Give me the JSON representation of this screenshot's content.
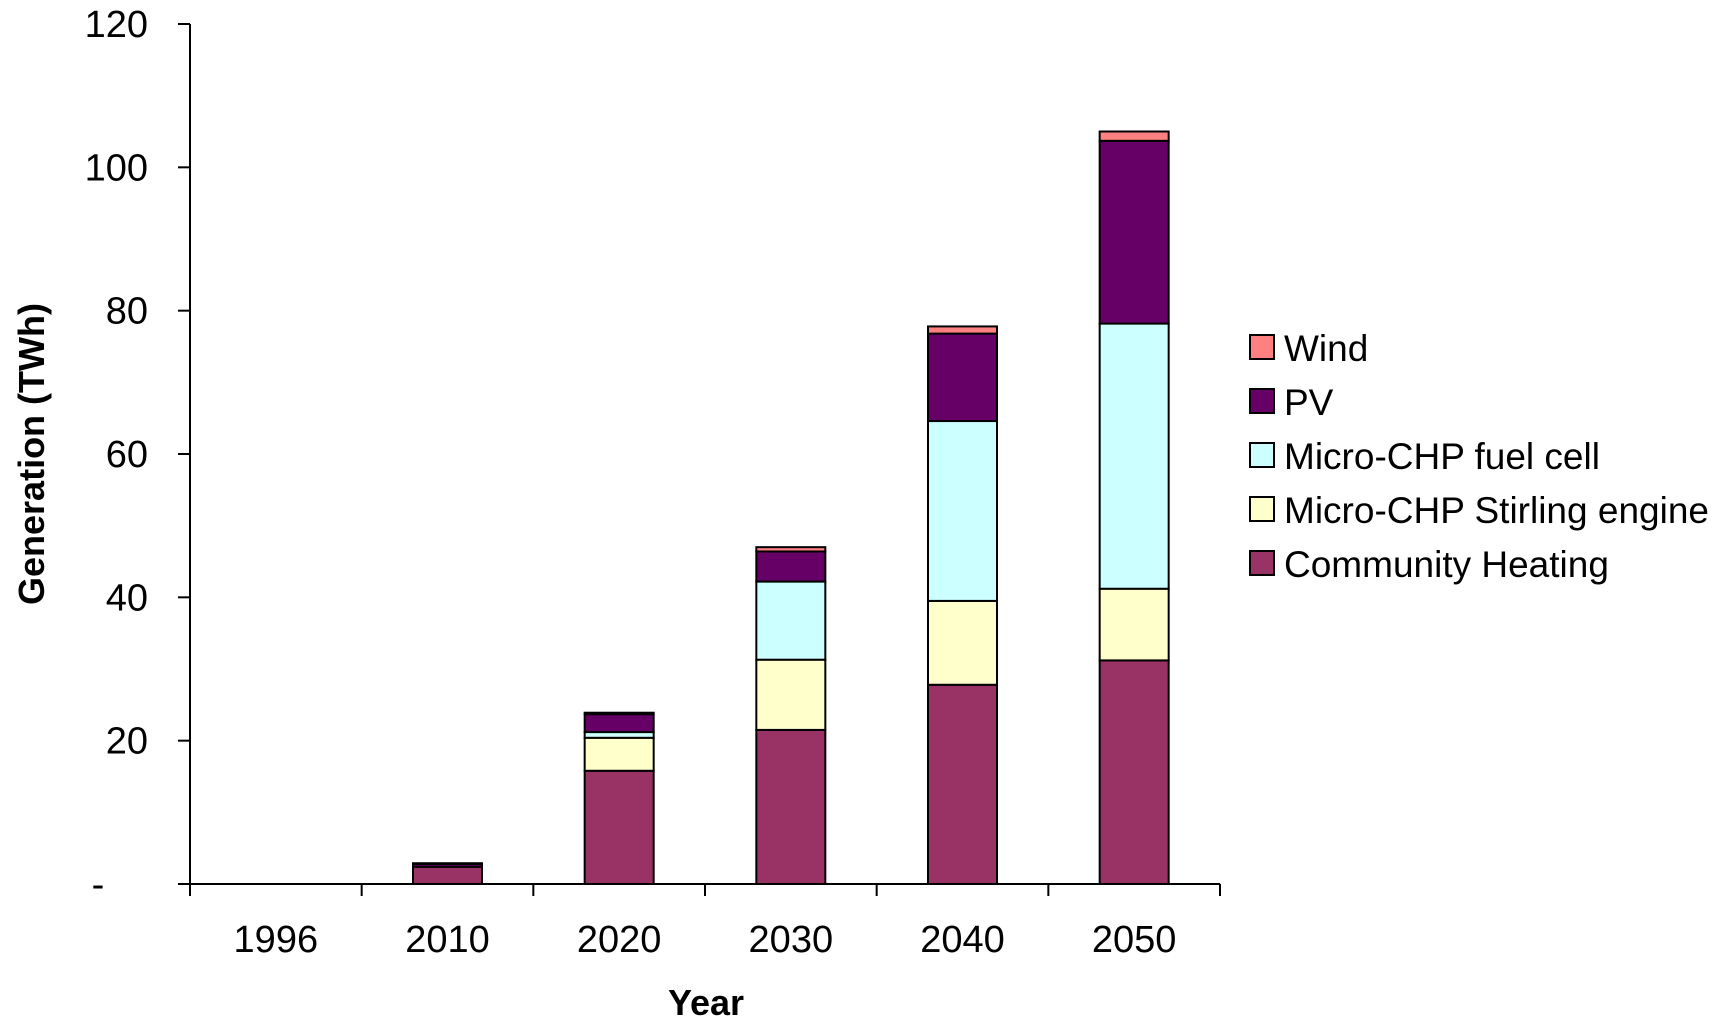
{
  "chart_data": {
    "type": "bar",
    "stacked": true,
    "title": "",
    "xlabel": "Year",
    "ylabel": "Generation (TWh)",
    "ylim": [
      0,
      120
    ],
    "yticks": [
      {
        "value": 0,
        "label": "-"
      },
      {
        "value": 20,
        "label": "20"
      },
      {
        "value": 40,
        "label": "40"
      },
      {
        "value": 60,
        "label": "60"
      },
      {
        "value": 80,
        "label": "80"
      },
      {
        "value": 100,
        "label": "100"
      },
      {
        "value": 120,
        "label": "120"
      }
    ],
    "grid": false,
    "legend_position": "right",
    "categories": [
      "1996",
      "2010",
      "2020",
      "2030",
      "2040",
      "2050"
    ],
    "series": [
      {
        "name": "Community Heating",
        "color": "#993366",
        "values": [
          0,
          2.4,
          15.8,
          21.5,
          27.8,
          31.2
        ]
      },
      {
        "name": "Micro-CHP Stirling engine",
        "color": "#FFFFCC",
        "values": [
          0,
          0,
          4.6,
          9.8,
          11.7,
          10.0
        ]
      },
      {
        "name": "Micro-CHP fuel cell",
        "color": "#CCFFFF",
        "values": [
          0,
          0,
          0.8,
          10.9,
          25.1,
          37.0
        ]
      },
      {
        "name": "PV",
        "color": "#660066",
        "values": [
          0,
          0.4,
          2.5,
          4.2,
          12.2,
          25.5
        ]
      },
      {
        "name": "Wind",
        "color": "#FF8080",
        "values": [
          0,
          0.1,
          0.2,
          0.6,
          1.0,
          1.3
        ]
      }
    ],
    "legend_order": [
      "Wind",
      "PV",
      "Micro-CHP fuel cell",
      "Micro-CHP Stirling engine",
      "Community Heating"
    ]
  }
}
